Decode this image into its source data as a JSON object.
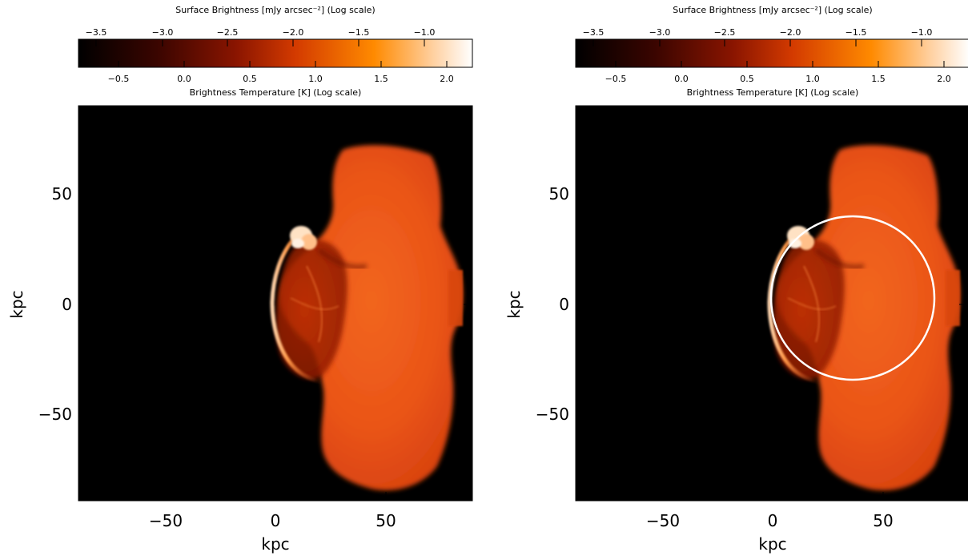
{
  "panels": [
    {
      "id": "left",
      "colorbar": {
        "top_title": "Surface Brightness [mJy arcsec⁻²] (Log scale)",
        "bottom_title": "Brightness Temperature [K] (Log scale)",
        "top_ticks": [
          "−3.5",
          "−3.0",
          "−2.5",
          "−2.0",
          "−1.5",
          "−1.0"
        ],
        "bottom_ticks": [
          "−0.5",
          "0.0",
          "0.5",
          "1.0",
          "1.5",
          "2.0"
        ]
      },
      "xlabel": "kpc",
      "ylabel": "kpc",
      "x_ticks": [
        "−50",
        "0",
        "50"
      ],
      "y_ticks": [
        "50",
        "0",
        "−50"
      ],
      "overlay_circle": false
    },
    {
      "id": "right",
      "colorbar": {
        "top_title": "Surface Brightness [mJy arcsec⁻²] (Log scale)",
        "bottom_title": "Brightness Temperature [K] (Log scale)",
        "top_ticks": [
          "−3.5",
          "−3.0",
          "−2.5",
          "−2.0",
          "−1.5",
          "−1.0"
        ],
        "bottom_ticks": [
          "−0.5",
          "0.0",
          "0.5",
          "1.0",
          "1.5",
          "2.0"
        ]
      },
      "xlabel": "kpc",
      "ylabel": "kpc",
      "x_ticks": [
        "−50",
        "0",
        "50"
      ],
      "y_ticks": [
        "50",
        "0",
        "−50"
      ],
      "overlay_circle": true
    }
  ],
  "colormap": [
    "#000000",
    "#3a0500",
    "#8a1500",
    "#d33a00",
    "#ff8a00",
    "#ffd0a0",
    "#ffffff"
  ],
  "colors": {
    "background": "#000000",
    "circle": "#ffffff",
    "axes": "#000000"
  }
}
